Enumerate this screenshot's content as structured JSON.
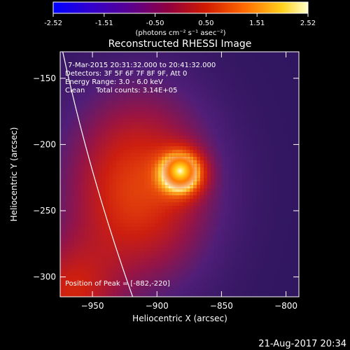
{
  "chart_data": {
    "type": "heatmap",
    "title": "Reconstructed RHESSI Image",
    "xlabel": "Heliocentric X (arcsec)",
    "ylabel": "Heliocentric Y (arcsec)",
    "xlim": [
      -975,
      -790
    ],
    "ylim": [
      -315,
      -130
    ],
    "x_ticks": [
      -950,
      -900,
      -850,
      -800
    ],
    "y_ticks": [
      -150,
      -200,
      -250,
      -300
    ],
    "colorbar": {
      "ticks": [
        "-2.52",
        "-1.51",
        "-0.50",
        "0.50",
        "1.51",
        "2.52"
      ],
      "range": [
        -2.52,
        2.52
      ],
      "units": "(photons cm⁻² s⁻¹ asec⁻²)"
    },
    "annotations": {
      "time": "7-Mar-2015 20:31:32.000 to 20:41:32.000",
      "detectors": "Detectors: 3F 5F 6F 7F 8F 9F, Att 0",
      "energy": "Energy Range: 3.0 - 6.0 keV",
      "clean": "Clean     Total counts: 3.14E+05",
      "peak": "Position of Peak = [-882,-220]"
    },
    "peak": {
      "x": -882,
      "y": -220
    },
    "limb_arc": [
      [
        -975,
        -121
      ],
      [
        -917,
        -320
      ]
    ],
    "timestamp": "21-Aug-2017 20:34"
  },
  "colors": {
    "background": "#000000",
    "low": "#5a2a9a",
    "mid": "#d42010",
    "peak": "#ffffc0"
  }
}
